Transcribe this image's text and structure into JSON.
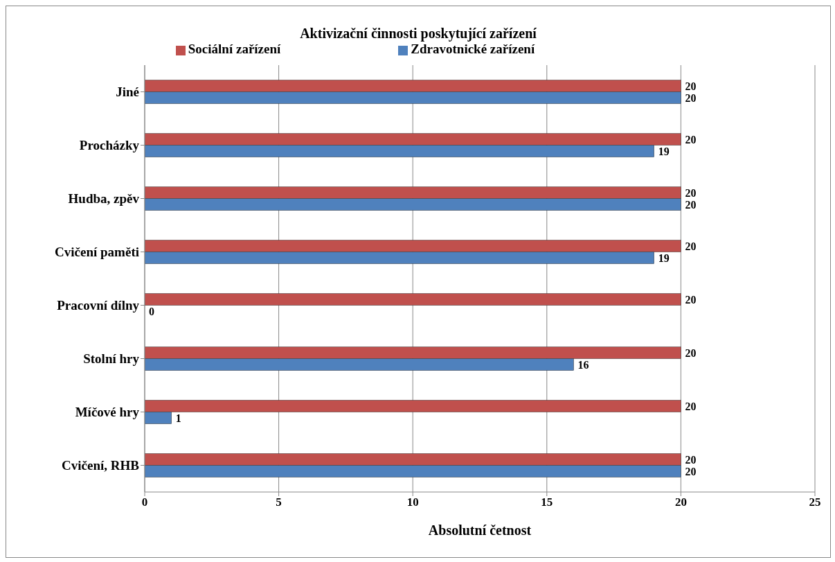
{
  "chart_data": {
    "type": "bar",
    "orientation": "horizontal",
    "title": "Aktivizační  činnosti poskytující zařízení",
    "xlabel": "Absolutní četnost",
    "categories": [
      "Jiné",
      "Procházky",
      "Hudba, zpěv",
      "Cvičení paměti",
      "Pracovní dílny",
      "Stolní hry",
      "Míčové hry",
      "Cvičení, RHB"
    ],
    "series": [
      {
        "name": "Sociální zařízení",
        "color": "#c0504d",
        "values": [
          20,
          20,
          20,
          20,
          20,
          20,
          20,
          20
        ]
      },
      {
        "name": "Zdravotnické zařízení",
        "color": "#4f81bd",
        "values": [
          20,
          19,
          20,
          19,
          0,
          16,
          1,
          20
        ]
      }
    ],
    "xlim": [
      0,
      25
    ],
    "xticks": [
      0,
      5,
      10,
      15,
      20,
      25
    ],
    "grid": "x",
    "legend": "top",
    "data_labels": true
  }
}
